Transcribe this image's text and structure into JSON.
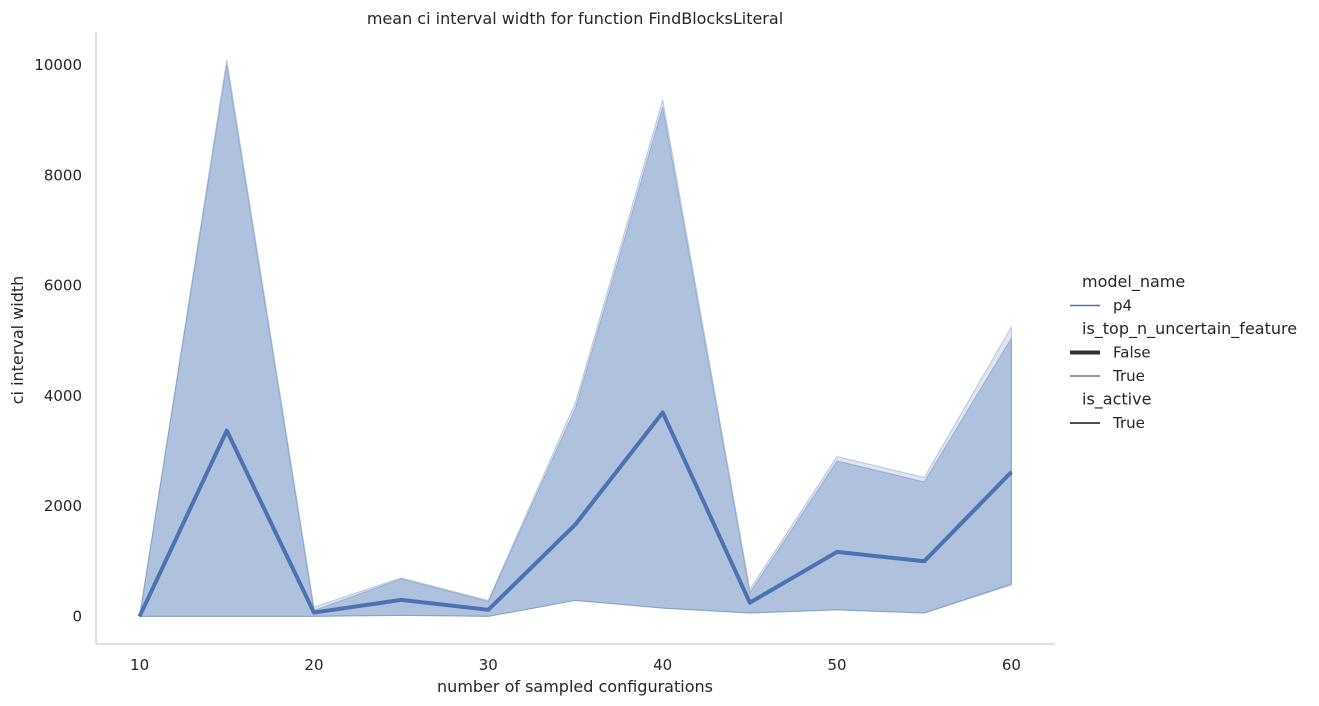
{
  "chart_data": {
    "type": "line",
    "title": "mean ci interval width for function FindBlocksLiteral",
    "xlabel": "number of sampled configurations",
    "ylabel": "ci interval width",
    "xlim": [
      7.5,
      62.5
    ],
    "ylim": [
      -500,
      10600
    ],
    "xticks": [
      10,
      20,
      30,
      40,
      50,
      60
    ],
    "yticks": [
      0,
      2000,
      4000,
      6000,
      8000,
      10000
    ],
    "grid": false,
    "legend_placement": "right",
    "x": [
      10,
      15,
      20,
      25,
      30,
      35,
      40,
      45,
      50,
      55,
      60
    ],
    "series": [
      {
        "name": "False",
        "values": [
          0,
          3370,
          70,
          300,
          120,
          1670,
          3700,
          250,
          1170,
          1000,
          2620
        ],
        "band_lower": [
          0,
          0,
          0,
          20,
          0,
          290,
          150,
          60,
          120,
          60,
          570
        ],
        "band_upper": [
          0,
          10000,
          110,
          680,
          270,
          3780,
          9240,
          430,
          2820,
          2440,
          5050
        ]
      },
      {
        "name": "True",
        "values": [
          0,
          3380,
          75,
          305,
          125,
          1680,
          3710,
          255,
          1180,
          1010,
          2630
        ],
        "band_lower": [
          0,
          0,
          0,
          20,
          0,
          290,
          150,
          60,
          120,
          60,
          590
        ],
        "band_upper": [
          0,
          10100,
          170,
          700,
          290,
          3880,
          9370,
          490,
          2900,
          2520,
          5250
        ]
      }
    ],
    "line_color": "#4c72b0",
    "band_color": "#4c72b0",
    "legend": [
      {
        "kind": "title",
        "text": "model_name"
      },
      {
        "kind": "entry",
        "text": "p4",
        "style": "color"
      },
      {
        "kind": "title",
        "text": "is_top_n_uncertain_feature"
      },
      {
        "kind": "entry",
        "text": "False",
        "style": "thick"
      },
      {
        "kind": "entry",
        "text": "True",
        "style": "thin"
      },
      {
        "kind": "title",
        "text": "is_active"
      },
      {
        "kind": "entry",
        "text": "True",
        "style": "solid"
      }
    ]
  }
}
